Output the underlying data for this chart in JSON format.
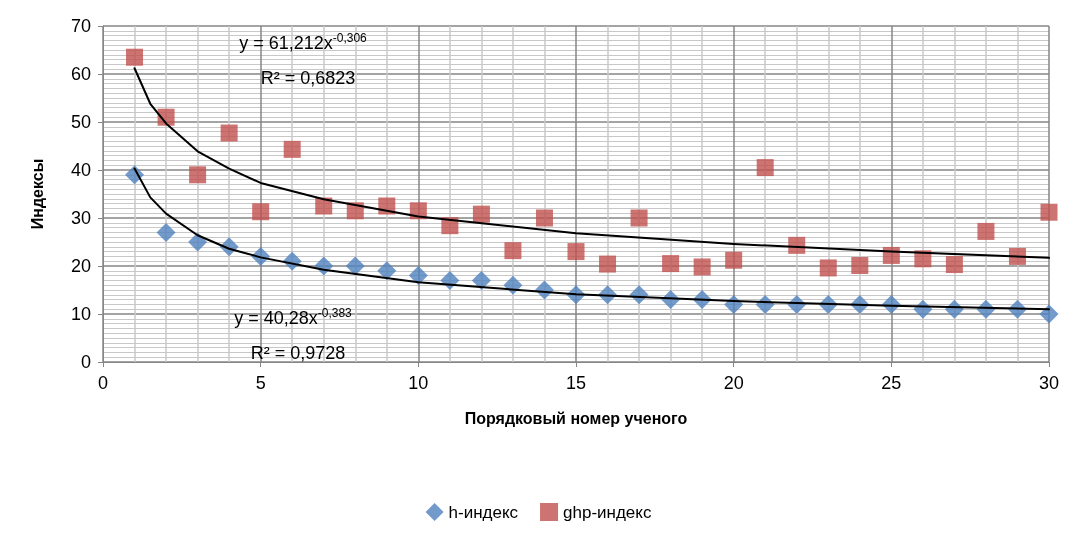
{
  "chart_data": {
    "type": "scatter",
    "xlabel": "Порядковый номер ученого",
    "ylabel": "Индексы",
    "x": [
      1,
      2,
      3,
      4,
      5,
      6,
      7,
      8,
      9,
      10,
      11,
      12,
      13,
      14,
      15,
      16,
      17,
      18,
      19,
      20,
      21,
      22,
      23,
      24,
      25,
      26,
      27,
      28,
      29,
      30
    ],
    "series": [
      {
        "name": "h-индекс",
        "color": "#4f81bd",
        "marker": "diamond",
        "values": [
          39,
          27,
          25,
          24,
          22,
          21,
          20,
          20,
          19,
          18,
          17,
          17,
          16,
          15,
          14,
          14,
          14,
          13,
          13,
          12,
          12,
          12,
          12,
          12,
          12,
          11,
          11,
          11,
          11,
          10
        ]
      },
      {
        "name": "ghp-индекс",
        "color": "#c0504d",
        "marker": "square",
        "values": [
          63.5,
          51,
          39,
          47.7,
          31.3,
          44.3,
          32.5,
          31.5,
          32.5,
          31.5,
          28.4,
          30.8,
          23.2,
          30,
          23,
          20.4,
          30,
          20.5,
          19.8,
          21.2,
          40.5,
          24.3,
          19.6,
          20.1,
          22.2,
          21.5,
          20.3,
          27.2,
          22,
          31.2
        ]
      },
      {
        "type": "line",
        "color": "#000000",
        "marker": "none",
        "x": [
          1,
          1.5,
          2,
          3,
          4,
          5,
          7,
          10,
          15,
          20,
          25,
          30
        ],
        "values": [
          40.3,
          34.3,
          30.9,
          26.4,
          23.6,
          21.8,
          19.2,
          16.6,
          14.1,
          12.7,
          11.7,
          11.0
        ]
      },
      {
        "type": "line",
        "color": "#000000",
        "marker": "none",
        "x": [
          1,
          1.5,
          2,
          3,
          4,
          5,
          7,
          10,
          15,
          20,
          25,
          30
        ],
        "values": [
          61.2,
          53.8,
          49.7,
          43.9,
          40.3,
          37.3,
          33.9,
          30.3,
          26.8,
          24.6,
          23.0,
          21.7
        ]
      }
    ],
    "annotations": [
      "y = 61,212x$^{-0,306}$",
      "R² = 0,6823",
      "y = 40,28x$^{-0,383}$",
      "R² = 0,9728"
    ],
    "xlim": [
      0,
      30
    ],
    "xticks": [
      0,
      5,
      10,
      15,
      20,
      25,
      30
    ],
    "ylim": [
      0,
      70
    ],
    "yticks": [
      0,
      10,
      20,
      30,
      40,
      50,
      60,
      70
    ],
    "grid": true,
    "legend": "bottom"
  }
}
